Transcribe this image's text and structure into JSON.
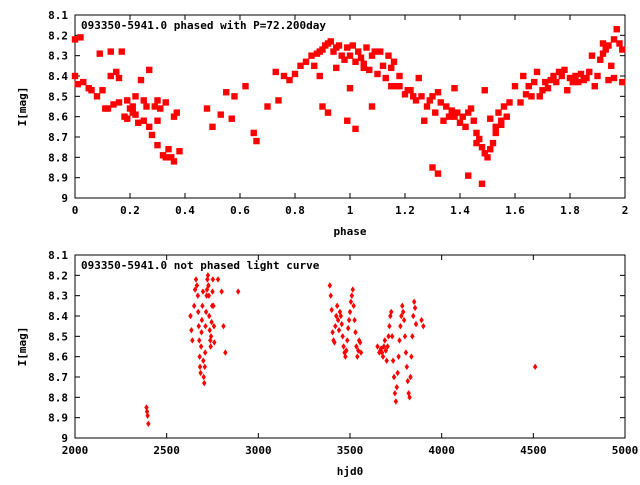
{
  "colors": {
    "points": "#ff0000",
    "axes": "#000000",
    "background": "#ffffff"
  },
  "chart_data": [
    {
      "type": "scatter",
      "title": "093350-5941.0 phased with P=72.200day",
      "xlabel": "phase",
      "ylabel": "I[mag]",
      "xlim": [
        0,
        2
      ],
      "ylim": [
        8.1,
        9
      ],
      "y_inverted": true,
      "x_ticks": [
        "0",
        "0.2",
        "0.4",
        "0.6",
        "0.8",
        "1",
        "1.2",
        "1.4",
        "1.6",
        "1.8",
        "2"
      ],
      "y_ticks": [
        "8.1",
        "8.2",
        "8.3",
        "8.4",
        "8.5",
        "8.6",
        "8.7",
        "8.8",
        "8.9",
        "9"
      ],
      "grid": false,
      "marker": "filled-square",
      "series": [
        {
          "x": [
            0.0,
            0.02,
            0.0,
            0.01,
            0.03,
            0.05,
            0.06,
            0.08,
            0.09,
            0.1,
            0.11,
            0.12,
            0.13,
            0.14,
            0.15,
            0.16,
            0.17,
            0.18,
            0.19,
            0.2,
            0.21,
            0.22,
            0.23,
            0.24,
            0.25,
            0.26,
            0.27,
            0.28,
            0.29,
            0.3,
            0.31,
            0.32,
            0.33,
            0.34,
            0.35,
            0.36,
            0.37,
            0.38,
            0.13,
            0.16,
            0.27,
            0.3,
            0.36,
            0.19,
            0.21,
            0.22,
            0.25,
            0.3,
            0.33,
            0.48,
            0.5,
            0.53,
            0.55,
            0.57,
            0.58,
            0.62,
            0.65,
            0.66,
            0.7,
            0.73,
            0.74,
            0.76,
            0.78,
            0.8,
            0.82,
            0.84,
            0.86,
            0.87,
            0.88,
            0.89,
            0.9,
            0.91,
            0.92,
            0.93,
            0.94,
            0.95,
            0.96,
            0.97,
            0.98,
            0.99,
            1.0,
            1.01,
            1.02,
            1.03,
            1.04,
            1.05,
            1.06,
            1.07,
            1.08,
            1.09,
            1.1,
            1.11,
            1.12,
            1.13,
            1.14,
            1.15,
            1.16,
            1.17,
            1.18,
            0.9,
            0.92,
            0.99,
            1.02,
            1.05,
            0.89,
            0.95,
            1.0,
            1.08,
            1.15,
            1.18,
            1.2,
            1.21,
            1.22,
            1.23,
            1.24,
            1.25,
            1.26,
            1.27,
            1.28,
            1.29,
            1.3,
            1.31,
            1.32,
            1.33,
            1.34,
            1.35,
            1.36,
            1.37,
            1.38,
            1.39,
            1.4,
            1.41,
            1.42,
            1.43,
            1.44,
            1.45,
            1.46,
            1.47,
            1.48,
            1.49,
            1.5,
            1.51,
            1.52,
            1.53,
            1.54,
            1.55,
            1.56,
            1.57,
            1.58,
            1.3,
            1.32,
            1.38,
            1.43,
            1.46,
            1.48,
            1.49,
            1.51,
            1.53,
            1.55,
            1.6,
            1.62,
            1.63,
            1.64,
            1.65,
            1.66,
            1.67,
            1.68,
            1.69,
            1.7,
            1.71,
            1.72,
            1.73,
            1.74,
            1.75,
            1.76,
            1.77,
            1.78,
            1.79,
            1.8,
            1.81,
            1.82,
            1.83,
            1.84,
            1.85,
            1.86,
            1.87,
            1.88,
            1.89,
            1.9,
            1.91,
            1.92,
            1.93,
            1.94,
            1.95,
            1.96,
            1.97,
            1.98,
            1.99,
            1.92,
            1.94,
            1.96,
            1.99
          ],
          "y": [
            8.22,
            8.21,
            8.4,
            8.44,
            8.43,
            8.46,
            8.47,
            8.5,
            8.29,
            8.47,
            8.56,
            8.56,
            8.28,
            8.54,
            8.38,
            8.53,
            8.28,
            8.6,
            8.52,
            8.56,
            8.58,
            8.59,
            8.63,
            8.42,
            8.52,
            8.55,
            8.65,
            8.69,
            8.55,
            8.74,
            8.56,
            8.79,
            8.53,
            8.76,
            8.8,
            8.82,
            8.58,
            8.77,
            8.4,
            8.41,
            8.37,
            8.52,
            8.6,
            8.61,
            8.55,
            8.5,
            8.62,
            8.62,
            8.8,
            8.56,
            8.65,
            8.59,
            8.48,
            8.61,
            8.5,
            8.45,
            8.68,
            8.72,
            8.55,
            8.38,
            8.52,
            8.4,
            8.42,
            8.39,
            8.35,
            8.33,
            8.3,
            8.35,
            8.29,
            8.28,
            8.27,
            8.25,
            8.24,
            8.23,
            8.28,
            8.26,
            8.25,
            8.3,
            8.32,
            8.26,
            8.3,
            8.25,
            8.33,
            8.28,
            8.31,
            8.34,
            8.26,
            8.37,
            8.3,
            8.28,
            8.39,
            8.28,
            8.35,
            8.41,
            8.3,
            8.36,
            8.33,
            8.45,
            8.4,
            8.55,
            8.58,
            8.62,
            8.66,
            8.36,
            8.4,
            8.36,
            8.46,
            8.55,
            8.45,
            8.45,
            8.49,
            8.47,
            8.47,
            8.5,
            8.52,
            8.41,
            8.5,
            8.62,
            8.55,
            8.52,
            8.5,
            8.58,
            8.48,
            8.53,
            8.62,
            8.55,
            8.6,
            8.57,
            8.46,
            8.58,
            8.63,
            8.6,
            8.65,
            8.58,
            8.56,
            8.62,
            8.68,
            8.71,
            8.75,
            8.78,
            8.8,
            8.76,
            8.73,
            8.68,
            8.58,
            8.64,
            8.55,
            8.6,
            8.53,
            8.85,
            8.88,
            8.6,
            8.89,
            8.73,
            8.93,
            8.47,
            8.61,
            8.65,
            8.62,
            8.45,
            8.53,
            8.4,
            8.49,
            8.45,
            8.5,
            8.43,
            8.38,
            8.5,
            8.47,
            8.43,
            8.46,
            8.42,
            8.4,
            8.43,
            8.38,
            8.4,
            8.37,
            8.47,
            8.41,
            8.43,
            8.4,
            8.43,
            8.39,
            8.42,
            8.41,
            8.38,
            8.3,
            8.45,
            8.4,
            8.32,
            8.29,
            8.27,
            8.25,
            8.35,
            8.22,
            8.17,
            8.24,
            8.27,
            8.24,
            8.42,
            8.41,
            8.43
          ]
        }
      ]
    },
    {
      "type": "scatter",
      "title": "093350-5941.0 not phased light curve",
      "xlabel": "hjd0",
      "ylabel": "I[mag]",
      "xlim": [
        2000,
        5000
      ],
      "ylim": [
        8.1,
        9
      ],
      "y_inverted": true,
      "x_ticks": [
        "2000",
        "2500",
        "3000",
        "3500",
        "4000",
        "4500",
        "5000"
      ],
      "y_ticks": [
        "8.1",
        "8.2",
        "8.3",
        "8.4",
        "8.5",
        "8.6",
        "8.7",
        "8.8",
        "8.9",
        "9"
      ],
      "grid": false,
      "marker": "filled-diamond",
      "series": [
        {
          "x": [
            2390,
            2393,
            2396,
            2400,
            2630,
            2635,
            2640,
            2650,
            2655,
            2660,
            2665,
            2670,
            2672,
            2675,
            2678,
            2680,
            2682,
            2685,
            2688,
            2690,
            2692,
            2695,
            2698,
            2700,
            2702,
            2705,
            2708,
            2710,
            2712,
            2715,
            2718,
            2720,
            2722,
            2725,
            2728,
            2730,
            2732,
            2735,
            2738,
            2740,
            2742,
            2745,
            2748,
            2750,
            2752,
            2755,
            2758,
            2760,
            2780,
            2800,
            2810,
            2820,
            2890,
            3390,
            3395,
            3400,
            3405,
            3410,
            3415,
            3420,
            3425,
            3430,
            3435,
            3440,
            3445,
            3450,
            3455,
            3460,
            3465,
            3470,
            3475,
            3480,
            3485,
            3490,
            3495,
            3500,
            3505,
            3510,
            3515,
            3520,
            3525,
            3530,
            3535,
            3540,
            3545,
            3550,
            3555,
            3560,
            3650,
            3660,
            3665,
            3670,
            3675,
            3680,
            3685,
            3690,
            3695,
            3700,
            3705,
            3710,
            3715,
            3720,
            3725,
            3730,
            3735,
            3740,
            3745,
            3750,
            3755,
            3760,
            3765,
            3770,
            3775,
            3780,
            3785,
            3790,
            3795,
            3800,
            3805,
            3810,
            3815,
            3820,
            3825,
            3830,
            3835,
            3840,
            3845,
            3850,
            3855,
            3860,
            3890,
            3900,
            4510
          ],
          "y": [
            8.85,
            8.87,
            8.89,
            8.93,
            8.4,
            8.47,
            8.52,
            8.35,
            8.27,
            8.22,
            8.25,
            8.3,
            8.38,
            8.45,
            8.52,
            8.6,
            8.65,
            8.68,
            8.55,
            8.48,
            8.42,
            8.35,
            8.28,
            8.62,
            8.7,
            8.73,
            8.65,
            8.58,
            8.45,
            8.38,
            8.3,
            8.27,
            8.22,
            8.2,
            8.25,
            8.3,
            8.4,
            8.47,
            8.52,
            8.55,
            8.5,
            8.43,
            8.35,
            8.28,
            8.22,
            8.35,
            8.45,
            8.53,
            8.22,
            8.28,
            8.45,
            8.58,
            8.28,
            8.25,
            8.3,
            8.37,
            8.48,
            8.52,
            8.53,
            8.45,
            8.4,
            8.35,
            8.42,
            8.47,
            8.38,
            8.4,
            8.44,
            8.5,
            8.55,
            8.58,
            8.6,
            8.57,
            8.52,
            8.46,
            8.42,
            8.38,
            8.33,
            8.3,
            8.27,
            8.35,
            8.42,
            8.48,
            8.55,
            8.6,
            8.57,
            8.52,
            8.53,
            8.58,
            8.55,
            8.58,
            8.57,
            8.56,
            8.58,
            8.6,
            8.55,
            8.52,
            8.57,
            8.62,
            8.55,
            8.5,
            8.45,
            8.4,
            8.38,
            8.5,
            8.62,
            8.7,
            8.78,
            8.82,
            8.75,
            8.68,
            8.6,
            8.52,
            8.45,
            8.4,
            8.35,
            8.38,
            8.42,
            8.5,
            8.58,
            8.65,
            8.72,
            8.78,
            8.8,
            8.7,
            8.6,
            8.5,
            8.4,
            8.33,
            8.36,
            8.44,
            8.42,
            8.45,
            8.65
          ]
        }
      ]
    }
  ]
}
